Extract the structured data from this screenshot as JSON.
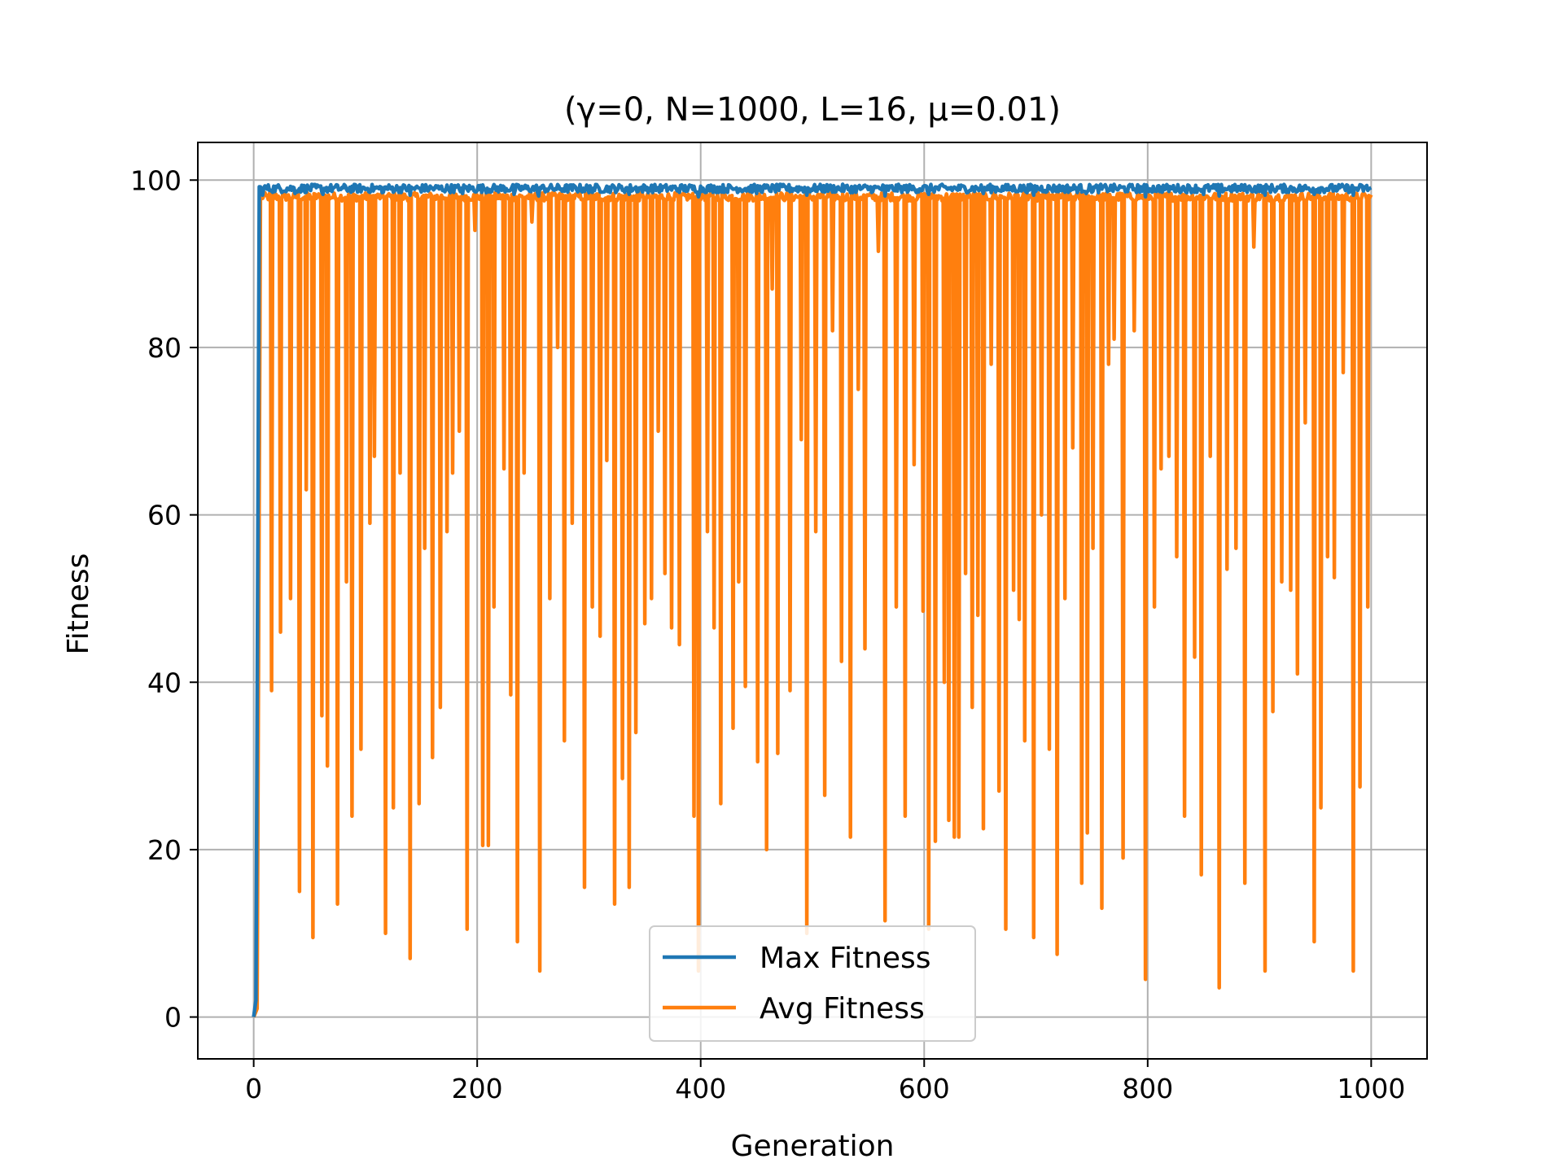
{
  "chart_data": {
    "type": "line",
    "title": "(γ=0, N=1000, L=16, μ=0.01)",
    "xlabel": "Generation",
    "ylabel": "Fitness",
    "xlim": [
      -50,
      1050
    ],
    "ylim": [
      -5,
      104.5
    ],
    "xticks": [
      0,
      200,
      400,
      600,
      800,
      1000
    ],
    "yticks": [
      0,
      20,
      40,
      60,
      80,
      100
    ],
    "grid": true,
    "legend": "lower center",
    "colors": {
      "max": "#1f77b4",
      "avg": "#ff7f0e"
    },
    "series": [
      {
        "name": "Max Fitness",
        "baseline": 99.0,
        "noise": 0.5,
        "start": [
          [
            0,
            0
          ],
          [
            2,
            2
          ],
          [
            5,
            99.2
          ]
        ]
      },
      {
        "name": "Avg Fitness",
        "baseline": 98.0,
        "noise": 0.5,
        "start": [
          [
            0,
            0
          ],
          [
            3,
            1
          ],
          [
            6,
            98
          ]
        ]
      }
    ],
    "avg_dips": [
      [
        16,
        39
      ],
      [
        24,
        46
      ],
      [
        33,
        50
      ],
      [
        41,
        15
      ],
      [
        47,
        63
      ],
      [
        53,
        9.5
      ],
      [
        61,
        36
      ],
      [
        66,
        30
      ],
      [
        75,
        13.5
      ],
      [
        83,
        52
      ],
      [
        88,
        24
      ],
      [
        96,
        32
      ],
      [
        104,
        59
      ],
      [
        108,
        67
      ],
      [
        118,
        10
      ],
      [
        125,
        25
      ],
      [
        131,
        65
      ],
      [
        140,
        7
      ],
      [
        148,
        25.5
      ],
      [
        153,
        56
      ],
      [
        160,
        31
      ],
      [
        167,
        37
      ],
      [
        173,
        58
      ],
      [
        178,
        65
      ],
      [
        184,
        70
      ],
      [
        191,
        10.5
      ],
      [
        198,
        94
      ],
      [
        205,
        20.5
      ],
      [
        210,
        20.5
      ],
      [
        215,
        49
      ],
      [
        224,
        65.5
      ],
      [
        230,
        38.5
      ],
      [
        236,
        9
      ],
      [
        242,
        65
      ],
      [
        249,
        95
      ],
      [
        256,
        5.5
      ],
      [
        265,
        50
      ],
      [
        272,
        80
      ],
      [
        278,
        33
      ],
      [
        285,
        59
      ],
      [
        296,
        15.5
      ],
      [
        303,
        49
      ],
      [
        310,
        45.5
      ],
      [
        316,
        66.5
      ],
      [
        323,
        13.5
      ],
      [
        330,
        28.5
      ],
      [
        336,
        15.5
      ],
      [
        342,
        34
      ],
      [
        350,
        47
      ],
      [
        356,
        50
      ],
      [
        362,
        70
      ],
      [
        368,
        53
      ],
      [
        374,
        46.5
      ],
      [
        381,
        44.5
      ],
      [
        394,
        24
      ],
      [
        398,
        5.5
      ],
      [
        406,
        58
      ],
      [
        412,
        46.5
      ],
      [
        418,
        25.5
      ],
      [
        429,
        34.5
      ],
      [
        434,
        52
      ],
      [
        440,
        39.5
      ],
      [
        451,
        30.5
      ],
      [
        459,
        20
      ],
      [
        464,
        87
      ],
      [
        469,
        31.5
      ],
      [
        480,
        39
      ],
      [
        490,
        69
      ],
      [
        495,
        10
      ],
      [
        503,
        58
      ],
      [
        511,
        26.5
      ],
      [
        518,
        82
      ],
      [
        526,
        42.5
      ],
      [
        534,
        21.5
      ],
      [
        541,
        75
      ],
      [
        547,
        44
      ],
      [
        559,
        91.5
      ],
      [
        565,
        11.5
      ],
      [
        575,
        49
      ],
      [
        583,
        24
      ],
      [
        591,
        66
      ],
      [
        599,
        48.5
      ],
      [
        604,
        10.5
      ],
      [
        610,
        21
      ],
      [
        618,
        40
      ],
      [
        622,
        23.5
      ],
      [
        627,
        21.5
      ],
      [
        631,
        21.5
      ],
      [
        637,
        53
      ],
      [
        643,
        37
      ],
      [
        648,
        48
      ],
      [
        653,
        22.5
      ],
      [
        660,
        78
      ],
      [
        667,
        27
      ],
      [
        673,
        10.5
      ],
      [
        680,
        51
      ],
      [
        685,
        47.5
      ],
      [
        690,
        33
      ],
      [
        698,
        9.5
      ],
      [
        705,
        60
      ],
      [
        712,
        32
      ],
      [
        719,
        7.5
      ],
      [
        726,
        50
      ],
      [
        733,
        68
      ],
      [
        741,
        16
      ],
      [
        746,
        22
      ],
      [
        751,
        56
      ],
      [
        759,
        13
      ],
      [
        765,
        78
      ],
      [
        770,
        81
      ],
      [
        778,
        19
      ],
      [
        788,
        82
      ],
      [
        798,
        4.5
      ],
      [
        806,
        49
      ],
      [
        812,
        65.5
      ],
      [
        819,
        67
      ],
      [
        826,
        55
      ],
      [
        833,
        24
      ],
      [
        842,
        43
      ],
      [
        848,
        17
      ],
      [
        856,
        67
      ],
      [
        864,
        3.5
      ],
      [
        871,
        53.5
      ],
      [
        879,
        56
      ],
      [
        887,
        16
      ],
      [
        895,
        92
      ],
      [
        905,
        5.5
      ],
      [
        912,
        36.5
      ],
      [
        920,
        52
      ],
      [
        928,
        51
      ],
      [
        934,
        41
      ],
      [
        941,
        71
      ],
      [
        949,
        9
      ],
      [
        955,
        25
      ],
      [
        961,
        55
      ],
      [
        967,
        52.5
      ],
      [
        975,
        77
      ],
      [
        984,
        5.5
      ],
      [
        990,
        27.5
      ],
      [
        997,
        49
      ]
    ],
    "max_dips": [
      [
        8,
        98.2
      ],
      [
        37,
        98.4
      ],
      [
        62,
        98.3
      ],
      [
        115,
        98.5
      ],
      [
        140,
        98.2
      ],
      [
        187,
        98.4
      ],
      [
        233,
        98.3
      ],
      [
        255,
        98.1
      ],
      [
        300,
        98.5
      ],
      [
        336,
        98.3
      ],
      [
        398,
        98.0
      ],
      [
        450,
        98.4
      ],
      [
        495,
        98.2
      ],
      [
        536,
        98.5
      ],
      [
        565,
        98.1
      ],
      [
        604,
        98.3
      ],
      [
        653,
        98.4
      ],
      [
        698,
        98.2
      ],
      [
        745,
        98.4
      ],
      [
        798,
        98.0
      ],
      [
        850,
        98.3
      ],
      [
        864,
        98.1
      ],
      [
        905,
        98.2
      ],
      [
        949,
        98.3
      ],
      [
        984,
        98.2
      ]
    ]
  }
}
